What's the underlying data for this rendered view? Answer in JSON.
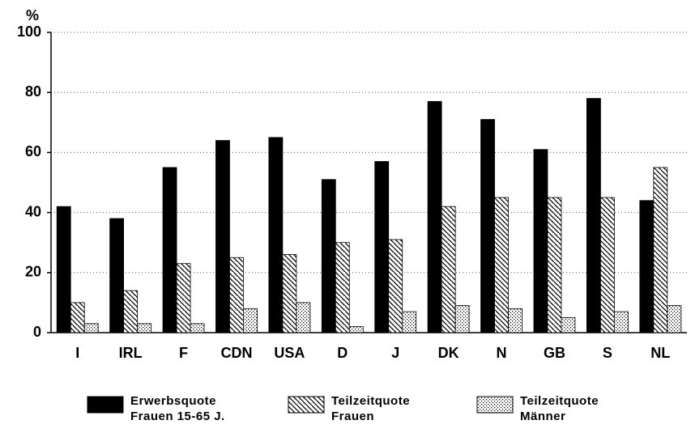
{
  "chart_data": {
    "type": "bar",
    "y_label": "%",
    "categories": [
      "I",
      "IRL",
      "F",
      "CDN",
      "USA",
      "D",
      "J",
      "DK",
      "N",
      "GB",
      "S",
      "NL"
    ],
    "series": [
      {
        "name": "Erwerbsquote Frauen 15-65 J.",
        "color": "#000000",
        "pattern": "solid",
        "values": [
          42,
          38,
          55,
          64,
          65,
          51,
          57,
          77,
          71,
          61,
          78,
          44
        ]
      },
      {
        "name": "Teilzeitquote Frauen",
        "color": "#000000",
        "pattern": "hatch",
        "values": [
          10,
          14,
          23,
          25,
          26,
          30,
          31,
          42,
          45,
          45,
          45,
          55
        ]
      },
      {
        "name": "Teilzeitquote Männer",
        "color": "#000000",
        "pattern": "dots",
        "values": [
          3,
          3,
          3,
          8,
          10,
          2,
          7,
          9,
          8,
          5,
          7,
          9
        ]
      }
    ],
    "ylim": [
      0,
      100
    ],
    "yticks": [
      0,
      20,
      40,
      60,
      80,
      100
    ],
    "grid": true
  }
}
